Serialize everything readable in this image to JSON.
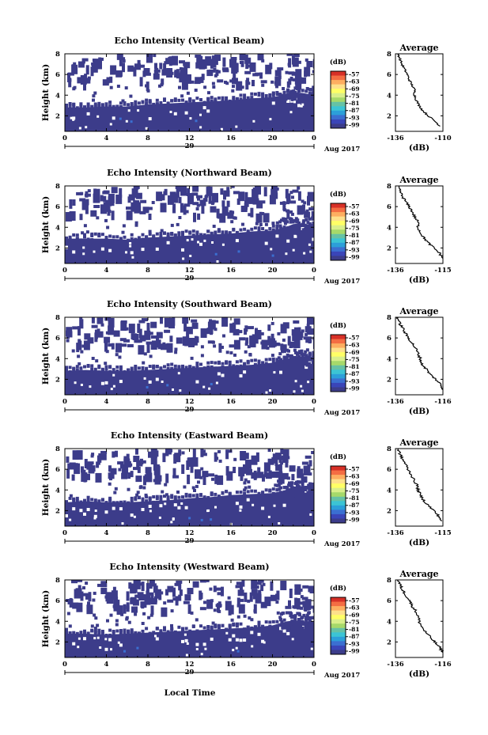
{
  "figure": {
    "xlabel": "Local Time",
    "date_label": "29",
    "month_year_label": "Aug 2017",
    "colorbar_unit": "(dB)",
    "colorbar_ticks": [
      "-57",
      "-63",
      "-69",
      "-75",
      "-81",
      "-87",
      "-93",
      "-99"
    ],
    "colorbar_colors": [
      "#d73027",
      "#f46d43",
      "#fdae61",
      "#fee08b",
      "#ffff66",
      "#d9ef8b",
      "#a6d96a",
      "#66c2a5",
      "#3cc4d4",
      "#2c9fd9",
      "#3b6fd1",
      "#3a45b8",
      "#3c3c8a"
    ],
    "fill_color": "#3c3c8a",
    "x_ticks": [
      "0",
      "4",
      "8",
      "12",
      "16",
      "20",
      "0"
    ],
    "y_ticks": [
      "2",
      "4",
      "6",
      "8"
    ],
    "ylabel": "Height (km)",
    "profile_title": "Average",
    "profile_xlabel": "(dB)"
  },
  "chart_data": [
    {
      "type": "heatmap",
      "title": "Echo Intensity (Vertical Beam)",
      "xlabel": "",
      "ylabel": "Height (km)",
      "xlim": [
        0,
        24
      ],
      "ylim": [
        0.5,
        8
      ],
      "x_ticks": [
        "0",
        "4",
        "8",
        "12",
        "16",
        "20",
        "0"
      ],
      "boundary_x": [
        0,
        2,
        4,
        6,
        8,
        10,
        12,
        14,
        16,
        18,
        20,
        21,
        22,
        23,
        24
      ],
      "boundary_top_km": [
        2.8,
        2.8,
        2.9,
        2.9,
        3.1,
        3.2,
        3.3,
        3.4,
        3.5,
        3.7,
        3.8,
        4.0,
        4.3,
        4.2,
        4.0
      ],
      "profile": {
        "xlim": [
          -136,
          -110
        ],
        "x_ticks": [
          "-136",
          "-110"
        ],
        "ylim": [
          0.5,
          8
        ],
        "height_km": [
          8.0,
          7.5,
          7.0,
          6.5,
          6.0,
          5.5,
          5.0,
          4.5,
          4.0,
          3.5,
          3.0,
          2.5,
          2.0,
          1.5,
          1.0
        ],
        "db": [
          -134.5,
          -133.5,
          -132.5,
          -131.0,
          -129.5,
          -128.5,
          -127.0,
          -125.5,
          -125.5,
          -124.5,
          -123.0,
          -121.0,
          -118.0,
          -114.5,
          -111.5
        ]
      }
    },
    {
      "type": "heatmap",
      "title": "Echo Intensity (Northward Beam)",
      "xlabel": "",
      "ylabel": "Height (km)",
      "xlim": [
        0,
        24
      ],
      "ylim": [
        0.5,
        8
      ],
      "x_ticks": [
        "0",
        "4",
        "8",
        "12",
        "16",
        "20",
        "0"
      ],
      "boundary_x": [
        0,
        2,
        4,
        6,
        8,
        10,
        12,
        14,
        16,
        18,
        20,
        21,
        22,
        23,
        24
      ],
      "boundary_top_km": [
        2.9,
        2.9,
        2.9,
        2.8,
        3.0,
        3.1,
        3.2,
        3.3,
        3.4,
        3.6,
        3.7,
        3.9,
        4.3,
        4.4,
        4.1
      ],
      "profile": {
        "xlim": [
          -136,
          -115
        ],
        "x_ticks": [
          "-136",
          "-115"
        ],
        "ylim": [
          0.5,
          8
        ],
        "height_km": [
          8.0,
          7.5,
          7.0,
          6.5,
          6.0,
          5.5,
          5.0,
          4.5,
          4.0,
          3.5,
          3.0,
          2.5,
          2.0,
          1.5,
          1.0
        ],
        "db": [
          -135.0,
          -134.0,
          -133.0,
          -131.5,
          -130.0,
          -128.5,
          -127.5,
          -126.0,
          -126.0,
          -125.0,
          -123.5,
          -121.5,
          -119.0,
          -116.5,
          -115.0
        ]
      }
    },
    {
      "type": "heatmap",
      "title": "Echo Intensity (Southward Beam)",
      "xlabel": "",
      "ylabel": "Height (km)",
      "xlim": [
        0,
        24
      ],
      "ylim": [
        0.5,
        8
      ],
      "x_ticks": [
        "0",
        "4",
        "8",
        "12",
        "16",
        "20",
        "0"
      ],
      "boundary_x": [
        0,
        2,
        4,
        6,
        8,
        10,
        12,
        14,
        16,
        18,
        20,
        21,
        22,
        23,
        24
      ],
      "boundary_top_km": [
        2.8,
        2.9,
        2.8,
        2.8,
        2.9,
        3.0,
        3.1,
        3.2,
        3.3,
        3.4,
        3.6,
        3.9,
        4.1,
        4.2,
        4.2
      ],
      "profile": {
        "xlim": [
          -136,
          -116
        ],
        "x_ticks": [
          "-136",
          "-116"
        ],
        "ylim": [
          0.5,
          8
        ],
        "height_km": [
          8.0,
          7.5,
          7.0,
          6.5,
          6.0,
          5.5,
          5.0,
          4.5,
          4.0,
          3.5,
          3.0,
          2.5,
          2.0,
          1.5,
          1.0
        ],
        "db": [
          -135.0,
          -134.5,
          -133.0,
          -132.0,
          -130.5,
          -129.0,
          -127.5,
          -126.5,
          -125.5,
          -125.0,
          -123.0,
          -121.5,
          -119.0,
          -117.0,
          -116.0
        ]
      }
    },
    {
      "type": "heatmap",
      "title": "Echo Intensity (Eastward Beam)",
      "xlabel": "",
      "ylabel": "Height (km)",
      "xlim": [
        0,
        24
      ],
      "ylim": [
        0.5,
        8
      ],
      "x_ticks": [
        "0",
        "4",
        "8",
        "12",
        "16",
        "20",
        "0"
      ],
      "boundary_x": [
        0,
        2,
        4,
        6,
        8,
        10,
        12,
        14,
        16,
        18,
        20,
        21,
        22,
        23,
        24
      ],
      "boundary_top_km": [
        2.8,
        2.9,
        2.8,
        2.8,
        2.9,
        3.0,
        3.2,
        3.3,
        3.5,
        3.6,
        3.7,
        3.9,
        4.3,
        4.4,
        4.2
      ],
      "profile": {
        "xlim": [
          -136,
          -115
        ],
        "x_ticks": [
          "-136",
          "-115"
        ],
        "ylim": [
          0.5,
          8
        ],
        "height_km": [
          8.0,
          7.5,
          7.0,
          6.5,
          6.0,
          5.5,
          5.0,
          4.5,
          4.0,
          3.5,
          3.0,
          2.5,
          2.0,
          1.5,
          1.0
        ],
        "db": [
          -135.0,
          -134.0,
          -133.0,
          -131.5,
          -130.5,
          -129.0,
          -128.0,
          -126.5,
          -126.0,
          -125.0,
          -123.5,
          -121.5,
          -119.0,
          -117.0,
          -115.5
        ]
      }
    },
    {
      "type": "heatmap",
      "title": "Echo Intensity (Westward Beam)",
      "xlabel": "Local Time",
      "ylabel": "Height (km)",
      "xlim": [
        0,
        24
      ],
      "ylim": [
        0.5,
        8
      ],
      "x_ticks": [
        "0",
        "4",
        "8",
        "12",
        "16",
        "20",
        "0"
      ],
      "boundary_x": [
        0,
        2,
        4,
        6,
        8,
        10,
        12,
        14,
        16,
        18,
        20,
        21,
        22,
        23,
        24
      ],
      "boundary_top_km": [
        2.8,
        2.8,
        2.7,
        2.8,
        2.9,
        3.0,
        3.1,
        3.2,
        3.3,
        3.4,
        3.6,
        3.9,
        4.1,
        4.0,
        4.0
      ],
      "profile": {
        "xlim": [
          -136,
          -116
        ],
        "x_ticks": [
          "-136",
          "-116"
        ],
        "ylim": [
          0.5,
          8
        ],
        "height_km": [
          8.0,
          7.5,
          7.0,
          6.5,
          6.0,
          5.5,
          5.0,
          4.5,
          4.0,
          3.5,
          3.0,
          2.5,
          2.0,
          1.5,
          1.0
        ],
        "db": [
          -135.0,
          -134.0,
          -133.0,
          -131.5,
          -130.0,
          -129.0,
          -127.5,
          -126.5,
          -126.0,
          -125.0,
          -123.5,
          -121.5,
          -119.5,
          -117.5,
          -116.0
        ]
      }
    }
  ]
}
